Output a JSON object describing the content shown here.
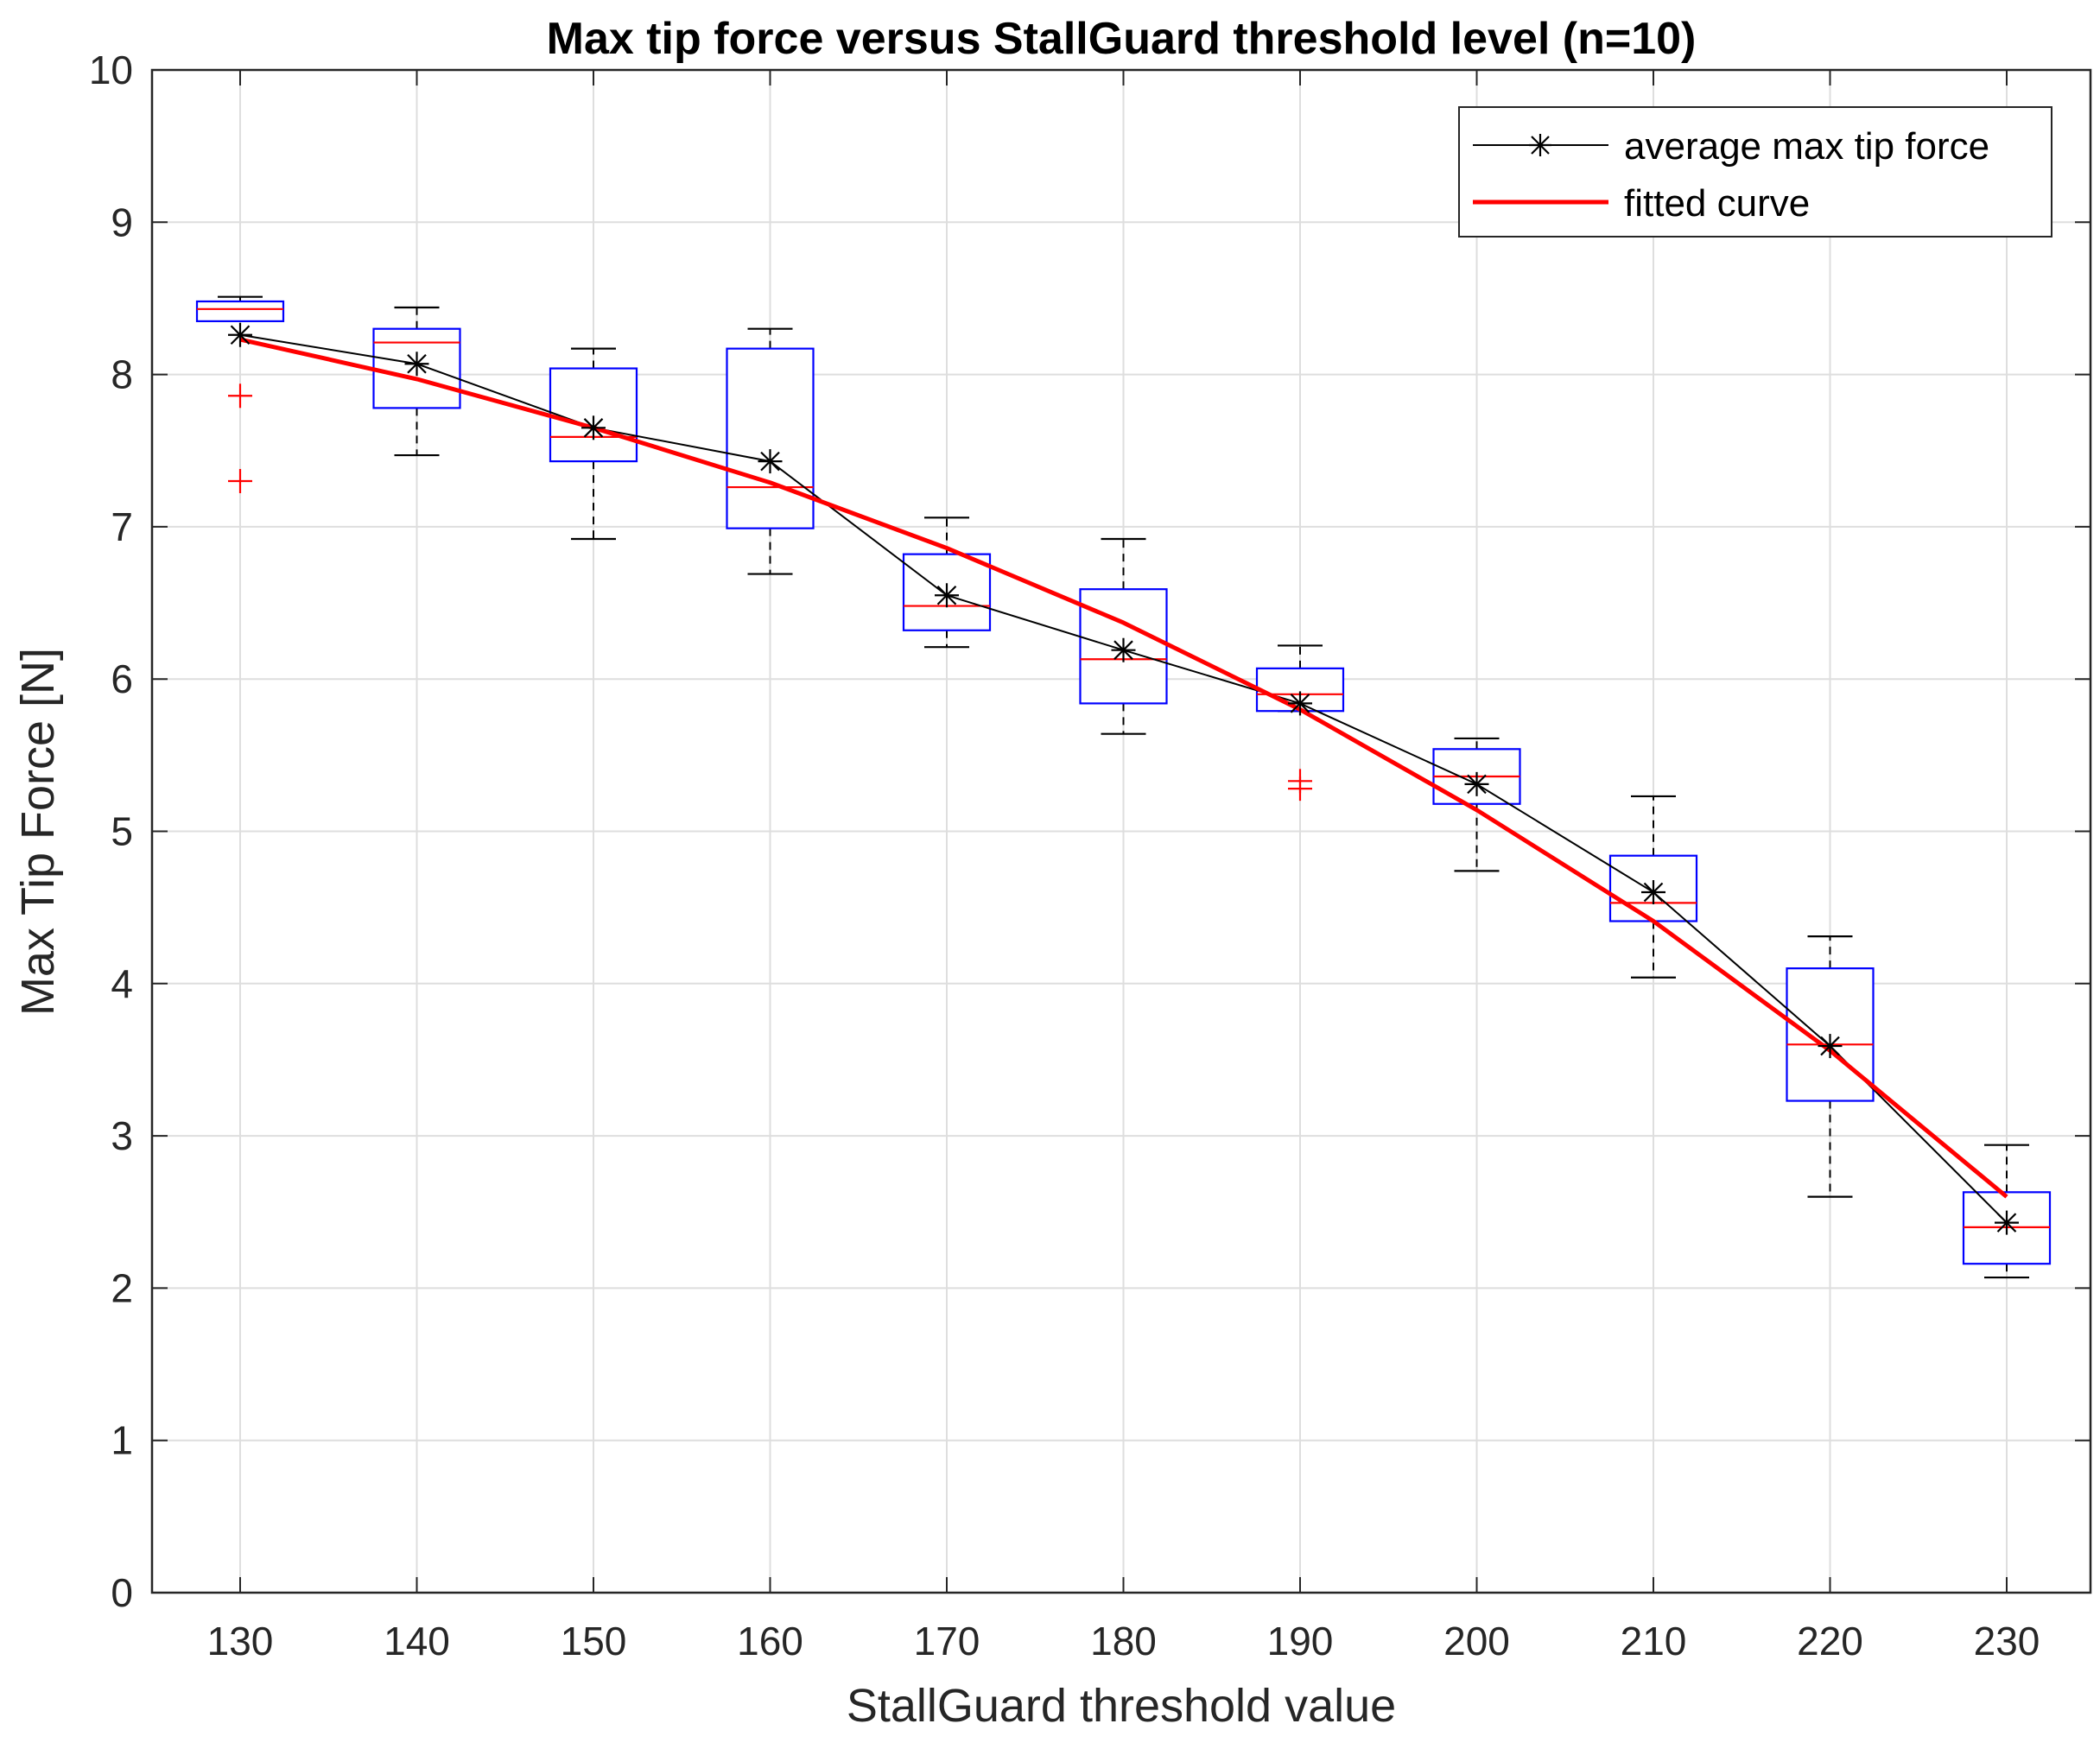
{
  "chart_data": {
    "type": "box",
    "title": "Max tip force versus StallGuard threshold level (n=10)",
    "xlabel": "StallGuard threshold value",
    "ylabel": "Max Tip Force [N]",
    "ylim": [
      0,
      10
    ],
    "yticks": [
      "0",
      "1",
      "2",
      "3",
      "4",
      "5",
      "6",
      "7",
      "8",
      "9",
      "10"
    ],
    "categories": [
      "130",
      "140",
      "150",
      "160",
      "170",
      "180",
      "190",
      "200",
      "210",
      "220",
      "230"
    ],
    "grid": true,
    "legend_position": "top-right",
    "colors": {
      "box": "#0000ff",
      "median": "#ff0000",
      "whisker": "#000000",
      "outlier": "#ff0000",
      "average": "#000000",
      "fit": "#ff0000",
      "grid": "#dedede",
      "axis": "#262626"
    },
    "boxes": [
      {
        "x": "130",
        "whisker_low": 8.35,
        "q1": 8.35,
        "median": 8.43,
        "q3": 8.48,
        "whisker_high": 8.51,
        "outliers": [
          7.86,
          7.3
        ]
      },
      {
        "x": "140",
        "whisker_low": 7.47,
        "q1": 7.78,
        "median": 8.21,
        "q3": 8.3,
        "whisker_high": 8.44,
        "outliers": []
      },
      {
        "x": "150",
        "whisker_low": 6.92,
        "q1": 7.43,
        "median": 7.59,
        "q3": 8.04,
        "whisker_high": 8.17,
        "outliers": []
      },
      {
        "x": "160",
        "whisker_low": 6.69,
        "q1": 6.99,
        "median": 7.26,
        "q3": 8.17,
        "whisker_high": 8.3,
        "outliers": []
      },
      {
        "x": "170",
        "whisker_low": 6.21,
        "q1": 6.32,
        "median": 6.48,
        "q3": 6.82,
        "whisker_high": 7.06,
        "outliers": []
      },
      {
        "x": "180",
        "whisker_low": 5.64,
        "q1": 5.84,
        "median": 6.13,
        "q3": 6.59,
        "whisker_high": 6.92,
        "outliers": []
      },
      {
        "x": "190",
        "whisker_low": 5.79,
        "q1": 5.79,
        "median": 5.9,
        "q3": 6.07,
        "whisker_high": 6.22,
        "outliers": [
          5.33,
          5.28
        ]
      },
      {
        "x": "200",
        "whisker_low": 4.74,
        "q1": 5.18,
        "median": 5.36,
        "q3": 5.54,
        "whisker_high": 5.61,
        "outliers": []
      },
      {
        "x": "210",
        "whisker_low": 4.04,
        "q1": 4.41,
        "median": 4.53,
        "q3": 4.84,
        "whisker_high": 5.23,
        "outliers": []
      },
      {
        "x": "220",
        "whisker_low": 2.6,
        "q1": 3.23,
        "median": 3.6,
        "q3": 4.1,
        "whisker_high": 4.31,
        "outliers": []
      },
      {
        "x": "230",
        "whisker_low": 2.07,
        "q1": 2.16,
        "median": 2.4,
        "q3": 2.63,
        "whisker_high": 2.94,
        "outliers": []
      }
    ],
    "series": [
      {
        "name": "average max tip force",
        "style": "black line with asterisk markers",
        "values": [
          8.26,
          8.07,
          7.65,
          7.43,
          6.55,
          6.19,
          5.84,
          5.31,
          4.6,
          3.59,
          2.43
        ]
      },
      {
        "name": "fitted curve",
        "style": "red line",
        "values": [
          8.23,
          7.97,
          7.65,
          7.29,
          6.86,
          6.37,
          5.8,
          5.14,
          4.41,
          3.56,
          2.6
        ]
      }
    ]
  }
}
